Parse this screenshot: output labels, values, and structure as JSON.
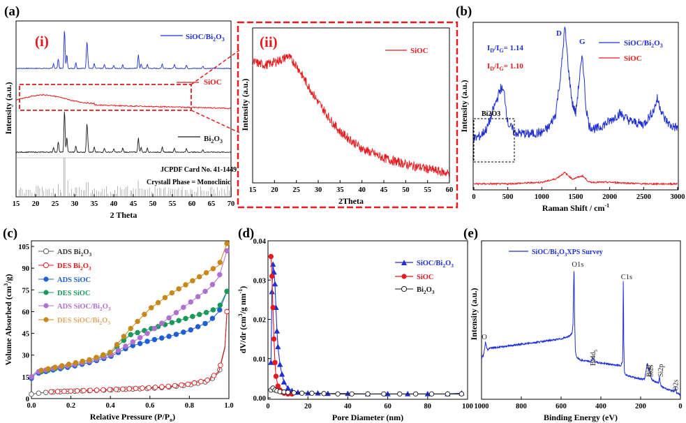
{
  "chart_data": [
    {
      "id": "a_i",
      "type": "line",
      "panel_label": "(a)",
      "sub_label": "(i)",
      "xlabel": "2 Theta",
      "ylabel": "Intensity (a.u.)",
      "xlim": [
        15,
        70
      ],
      "xticks": [
        15,
        20,
        25,
        30,
        35,
        40,
        45,
        50,
        55,
        60,
        65,
        70
      ],
      "series": [
        {
          "name": "SiOC/Bi2O3",
          "color": "#1f2fd6"
        },
        {
          "name": "SiOC",
          "color": "#e8191c"
        },
        {
          "name": "Bi2O3",
          "color": "#1a1a1a"
        }
      ],
      "reference_text": [
        "JCPDF Card No. 41-1449",
        "Crystall Phase = Monoclinic"
      ],
      "peaks_2theta": [
        24.6,
        25.8,
        27.4,
        28.0,
        30.3,
        33.1,
        33.3,
        35.0,
        37.6,
        40.0,
        42.3,
        46.3,
        47.0,
        48.6,
        52.4,
        55.5,
        58.6,
        62.8
      ]
    },
    {
      "id": "a_ii",
      "type": "line",
      "sub_label": "(ii)",
      "xlabel": "2Theta",
      "ylabel": "Intensity (a.u.)",
      "xlim": [
        15,
        60
      ],
      "xticks": [
        15,
        20,
        25,
        30,
        35,
        40,
        45,
        50,
        55,
        60
      ],
      "series": [
        {
          "name": "SiOC",
          "color": "#e8191c",
          "x": [
            15,
            18,
            20,
            22,
            23,
            25,
            27,
            30,
            33,
            35,
            40,
            45,
            50,
            55,
            60
          ],
          "y": [
            0.78,
            0.76,
            0.78,
            0.8,
            0.82,
            0.76,
            0.66,
            0.52,
            0.4,
            0.33,
            0.22,
            0.16,
            0.12,
            0.09,
            0.06
          ]
        }
      ]
    },
    {
      "id": "b",
      "type": "line",
      "panel_label": "(b)",
      "xlabel": "Raman Shift / cm",
      "xlabel_sup": "-1",
      "ylabel": "Intensity (a.u.)",
      "xlim": [
        0,
        3000
      ],
      "xticks": [
        0,
        500,
        1000,
        1500,
        2000,
        2500,
        3000
      ],
      "series": [
        {
          "name": "SiOC/Bi2O3",
          "color": "#1f2fd6",
          "x": [
            0,
            100,
            200,
            300,
            400,
            450,
            500,
            600,
            800,
            1000,
            1100,
            1200,
            1280,
            1340,
            1400,
            1450,
            1500,
            1560,
            1600,
            1650,
            1700,
            1800,
            2000,
            2150,
            2300,
            2500,
            2650,
            2700,
            2800,
            2900,
            3000
          ],
          "y": [
            0.3,
            0.32,
            0.37,
            0.5,
            0.62,
            0.58,
            0.4,
            0.34,
            0.33,
            0.34,
            0.37,
            0.45,
            0.7,
            1.0,
            0.7,
            0.52,
            0.46,
            0.7,
            0.82,
            0.5,
            0.38,
            0.36,
            0.41,
            0.46,
            0.41,
            0.39,
            0.48,
            0.55,
            0.43,
            0.38,
            0.37
          ]
        },
        {
          "name": "SiOC",
          "color": "#e8191c",
          "x": [
            0,
            500,
            1000,
            1200,
            1340,
            1450,
            1600,
            1700,
            2000,
            2500,
            3000
          ],
          "y": [
            0.02,
            0.02,
            0.03,
            0.05,
            0.09,
            0.05,
            0.07,
            0.03,
            0.03,
            0.02,
            0.02
          ]
        }
      ],
      "annotations": {
        "ratio_blue": "I_D/I_G = 1.14",
        "ratio_red": "I_D/I_G = 1.10",
        "peak_D": "D",
        "peak_G": "G",
        "box_label": "Bi2O3",
        "id_sub": "D",
        "ig_sub": "G",
        "ratio_blue_val": "= 1.14",
        "ratio_red_val": "= 1.10",
        "bi2o3_sub2": "2",
        "bi2o3_sub3": "3"
      }
    },
    {
      "id": "c",
      "type": "line",
      "panel_label": "(c)",
      "xlabel": "Relative Pressure (P/P",
      "xlabel_sub": "o",
      "xlabel_end": ")",
      "ylabel": "Volume Absorbed (cm",
      "ylabel_sup": "3",
      "ylabel_end": "/g)",
      "xlim": [
        0.0,
        1.0
      ],
      "ylim": [
        0,
        105
      ],
      "xticks": [
        "0.0",
        "0.2",
        "0.4",
        "0.6",
        "0.8",
        "1.0"
      ],
      "yticks": [
        0,
        15,
        30,
        45,
        60,
        75,
        90,
        105
      ],
      "series": [
        {
          "name": "ADS Bi2O3",
          "color": "#555555",
          "marker": "open-circle",
          "x": [
            0.0,
            0.05,
            0.1,
            0.2,
            0.3,
            0.4,
            0.5,
            0.6,
            0.7,
            0.8,
            0.9,
            0.95,
            0.98,
            0.99
          ],
          "y": [
            3,
            4,
            4.5,
            5,
            5.5,
            6,
            6.5,
            7,
            8,
            9.5,
            12,
            18,
            35,
            60
          ]
        },
        {
          "name": "DES Bi2O3",
          "color": "#e8191c",
          "marker": "open-circle",
          "x": [
            0.99,
            0.98,
            0.95,
            0.9,
            0.8,
            0.7,
            0.6,
            0.5,
            0.4,
            0.3,
            0.2,
            0.1
          ],
          "y": [
            60,
            36,
            19,
            13,
            10,
            8.5,
            7.5,
            6.8,
            6.2,
            5.7,
            5.2,
            4.7
          ]
        },
        {
          "name": "ADS SiOC",
          "color": "#1f5fd6",
          "marker": "filled-circle",
          "x": [
            0.0,
            0.02,
            0.05,
            0.1,
            0.2,
            0.3,
            0.4,
            0.5,
            0.6,
            0.7,
            0.8,
            0.9,
            0.95,
            0.99
          ],
          "y": [
            14,
            17,
            18,
            19.5,
            22,
            25,
            29,
            36,
            40,
            43,
            47,
            53,
            60,
            74
          ]
        },
        {
          "name": "DES SiOC",
          "color": "#1a9a5a",
          "marker": "filled-circle",
          "x": [
            0.99,
            0.95,
            0.9,
            0.8,
            0.7,
            0.6,
            0.5,
            0.45,
            0.4,
            0.3,
            0.2,
            0.1,
            0.05
          ],
          "y": [
            74,
            63,
            60,
            56,
            52,
            48,
            44,
            38,
            31,
            26,
            23,
            20,
            18.5
          ]
        },
        {
          "name": "ADS SiOC/Bi2O3",
          "color": "#b070d0",
          "marker": "filled-circle",
          "x": [
            0.0,
            0.02,
            0.05,
            0.1,
            0.2,
            0.3,
            0.4,
            0.5,
            0.6,
            0.7,
            0.8,
            0.9,
            0.95,
            0.99
          ],
          "y": [
            15,
            18,
            19,
            20.5,
            23,
            26,
            30,
            38,
            46,
            56,
            66,
            76,
            84,
            102
          ]
        },
        {
          "name": "DES SiOC/Bi2O3",
          "color": "#c8881a",
          "marker": "filled-circle",
          "x": [
            0.99,
            0.95,
            0.9,
            0.8,
            0.7,
            0.6,
            0.5,
            0.45,
            0.4,
            0.3,
            0.2,
            0.1,
            0.05
          ],
          "y": [
            107,
            92,
            88,
            80,
            72,
            62,
            48,
            40,
            32,
            27,
            24,
            21,
            19.5
          ]
        }
      ]
    },
    {
      "id": "d",
      "type": "line",
      "panel_label": "(d)",
      "xlabel": "Pore Diameter (nm)",
      "ylabel": "dV/dr (cm",
      "ylabel_sup": "3",
      "ylabel_mid": "/g nm",
      "ylabel_sup2": "-1",
      "ylabel_end": ")",
      "xlim": [
        0,
        100
      ],
      "ylim": [
        0,
        0.04
      ],
      "xticks": [
        0,
        20,
        40,
        60,
        80,
        100
      ],
      "yticks": [
        "0.00",
        "0.01",
        "0.02",
        "0.03",
        "0.04"
      ],
      "series": [
        {
          "name": "SiOC/Bi2O3",
          "color": "#1f2fd6",
          "marker": "half-triangle",
          "x": [
            1.5,
            2.0,
            2.5,
            3.0,
            3.5,
            4.0,
            4.5,
            5.0,
            6.0,
            7.0,
            8.0,
            10,
            12,
            15,
            20,
            25,
            30,
            40,
            50,
            60,
            70,
            80,
            90,
            97
          ],
          "y": [
            0.009,
            0.027,
            0.034,
            0.032,
            0.029,
            0.023,
            0.017,
            0.013,
            0.0085,
            0.006,
            0.004,
            0.0025,
            0.0018,
            0.0014,
            0.0012,
            0.0012,
            0.0011,
            0.0011,
            0.001,
            0.001,
            0.001,
            0.001,
            0.001,
            0.0012
          ]
        },
        {
          "name": "SiOC",
          "color": "#e8191c",
          "marker": "filled-circle",
          "x": [
            1.5,
            2.0,
            2.5,
            3.0,
            3.5,
            4.0,
            5.0,
            6.0,
            7.0,
            8.0,
            10,
            12
          ],
          "y": [
            0.036,
            0.031,
            0.023,
            0.015,
            0.009,
            0.0055,
            0.003,
            0.002,
            0.0015,
            0.0012,
            0.001,
            0.001
          ]
        },
        {
          "name": "Bi2O3",
          "color": "#1a1a1a",
          "marker": "open-circle",
          "x": [
            1.5,
            2.5,
            3.5,
            4.5,
            6,
            8,
            10,
            13,
            17,
            22,
            28,
            35,
            42,
            50,
            58,
            66,
            74,
            82,
            90,
            97
          ],
          "y": [
            0.002,
            0.0025,
            0.002,
            0.0018,
            0.0016,
            0.0015,
            0.0014,
            0.0013,
            0.0012,
            0.0012,
            0.0011,
            0.001,
            0.001,
            0.001,
            0.001,
            0.001,
            0.001,
            0.001,
            0.001,
            0.001
          ]
        }
      ]
    },
    {
      "id": "e",
      "type": "line",
      "panel_label": "(e)",
      "xlabel": "Binding Energy (eV)",
      "ylabel": "Intensity (a.u.)",
      "xlim": [
        1000,
        0
      ],
      "xticks": [
        1000,
        800,
        600,
        400,
        200,
        0
      ],
      "legend": "SiOC/Bi2O3 XPS Survey",
      "series": [
        {
          "name": "SiOC/Bi2O3 XPS Survey",
          "color": "#1f2fd6",
          "x": [
            1000,
            990,
            985,
            980,
            975,
            970,
            960,
            900,
            800,
            700,
            600,
            560,
            545,
            540,
            535,
            532,
            528,
            520,
            500,
            450,
            440,
            430,
            400,
            350,
            300,
            290,
            287,
            285,
            282,
            278,
            270,
            250,
            200,
            180,
            166,
            160,
            156,
            152,
            150,
            140,
            110,
            105,
            102,
            98,
            90,
            60,
            30,
            26,
            20,
            10,
            0
          ],
          "y": [
            0.3,
            0.32,
            0.36,
            0.42,
            0.38,
            0.36,
            0.37,
            0.38,
            0.4,
            0.42,
            0.44,
            0.46,
            0.48,
            0.55,
            1.0,
            0.6,
            0.34,
            0.3,
            0.28,
            0.27,
            0.3,
            0.27,
            0.26,
            0.25,
            0.24,
            0.28,
            0.92,
            0.45,
            0.2,
            0.18,
            0.17,
            0.16,
            0.14,
            0.14,
            0.26,
            0.2,
            0.22,
            0.19,
            0.16,
            0.13,
            0.11,
            0.16,
            0.12,
            0.09,
            0.08,
            0.06,
            0.05,
            0.08,
            0.04,
            0.03,
            0.02
          ]
        }
      ],
      "peak_labels": [
        {
          "text": "O",
          "x": 985
        },
        {
          "text": "O1s",
          "x": 532
        },
        {
          "text": "Bi4d",
          "sub": "5",
          "x": 442
        },
        {
          "text": "C1s",
          "x": 285
        },
        {
          "text": "Bi4f",
          "x": 160
        },
        {
          "text": "Si2s",
          "x": 152
        },
        {
          "text": "Si2p",
          "x": 102
        },
        {
          "text": "O2s",
          "x": 26
        }
      ]
    }
  ],
  "legend_text": {
    "a_blue": "SiOC/Bi",
    "a_red": "SiOC",
    "a_black": "Bi",
    "aii_red": "SiOC",
    "b_blue": "SiOC/Bi",
    "b_red": "SiOC",
    "c_ads_bi": "ADS Bi",
    "c_des_bi": "DES Bi",
    "c_ads_sioc": "ADS SiOC",
    "c_des_sioc": "DES SiOC",
    "c_ads_comp": "ADS SiOC/Bi",
    "c_des_comp": "DES SiOC/Bi",
    "d_comp": "SiOC/Bi",
    "d_sioc": "SiOC",
    "d_bi": "Bi",
    "e_survey": "SiOC/Bi",
    "e_survey_end": "XPS Survey",
    "o_sym": "O",
    "sub2": "2",
    "sub3": "3"
  },
  "colors": {
    "blue": "#1f2fd6",
    "red": "#e8191c",
    "black": "#1a1a1a",
    "green": "#1a9a5a",
    "purple": "#b070d0",
    "orange": "#c8881a",
    "sioc_blue": "#1f5fd6"
  }
}
